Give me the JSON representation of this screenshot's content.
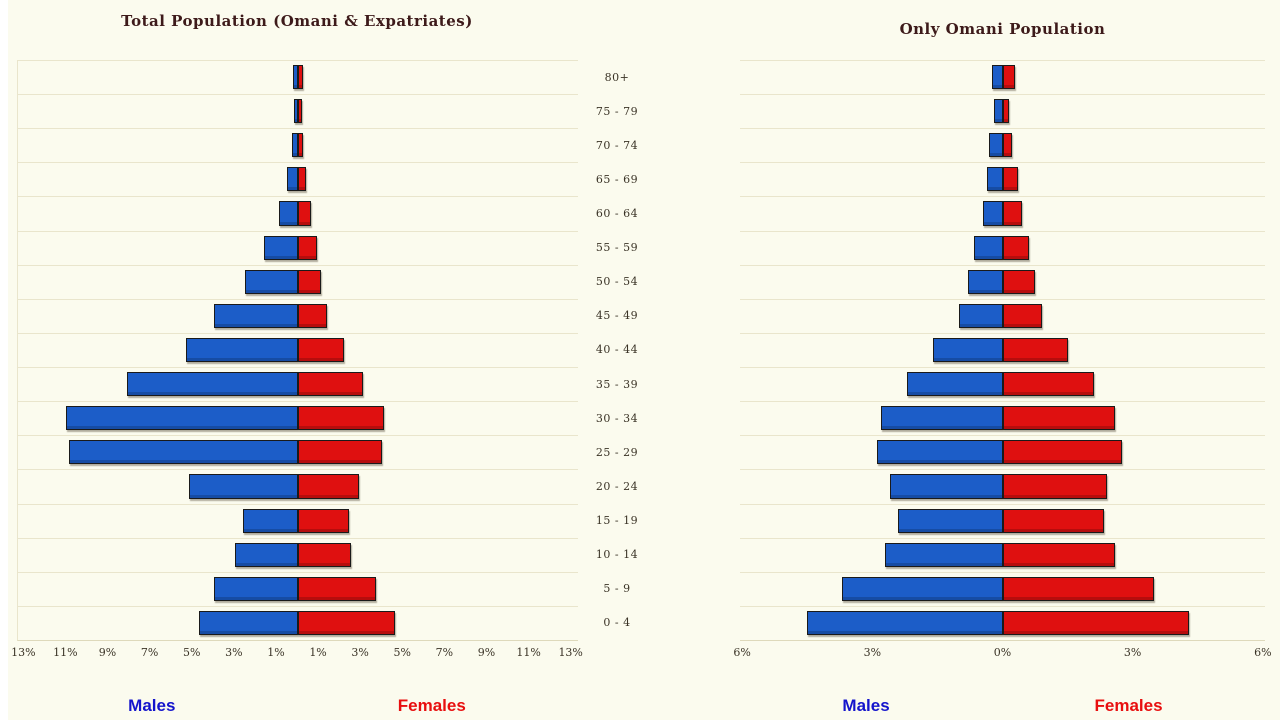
{
  "page": {
    "background_color": "#fbfbee",
    "gridline_color": "#e9e5cc"
  },
  "age_axis": {
    "groups": [
      "80+",
      "75 - 79",
      "70 - 74",
      "65 - 69",
      "60 - 64",
      "55 - 59",
      "50 - 54",
      "45 - 49",
      "40 - 44",
      "35 - 39",
      "30 - 34",
      "25 - 29",
      "20 - 24",
      "15 - 19",
      "10 - 14",
      "5 - 9",
      "0 - 4"
    ]
  },
  "chart_data": [
    {
      "type": "bar",
      "subtype": "population-pyramid",
      "title": "Total Population (Omani & Expatriates)",
      "categories": [
        "80+",
        "75 - 79",
        "70 - 74",
        "65 - 69",
        "60 - 64",
        "55 - 59",
        "50 - 54",
        "45 - 49",
        "40 - 44",
        "35 - 39",
        "30 - 34",
        "25 - 29",
        "20 - 24",
        "15 - 19",
        "10 - 14",
        "5 - 9",
        "0 - 4"
      ],
      "series": [
        {
          "name": "Males",
          "side": "left",
          "color": "#1c5dc8",
          "values": [
            0.25,
            0.2,
            0.3,
            0.5,
            0.9,
            1.6,
            2.5,
            4.0,
            5.3,
            8.1,
            11.0,
            10.9,
            5.2,
            2.6,
            3.0,
            4.0,
            4.7
          ]
        },
        {
          "name": "Females",
          "side": "right",
          "color": "#df1010",
          "values": [
            0.25,
            0.2,
            0.25,
            0.4,
            0.6,
            0.9,
            1.1,
            1.4,
            2.2,
            3.1,
            4.1,
            4.0,
            2.9,
            2.4,
            2.5,
            3.7,
            4.6
          ]
        }
      ],
      "unit": "%",
      "xlim": [
        -13.3,
        13.3
      ],
      "grid": true,
      "legend_position": "bottom",
      "legend": {
        "males": "Males",
        "females": "Females"
      },
      "xticks": [
        {
          "value": -13,
          "label": "13%"
        },
        {
          "value": -11,
          "label": "11%"
        },
        {
          "value": -9,
          "label": "9%"
        },
        {
          "value": -7,
          "label": "7%"
        },
        {
          "value": -5,
          "label": "5%"
        },
        {
          "value": -3,
          "label": "3%"
        },
        {
          "value": -1,
          "label": "1%"
        },
        {
          "value": 1,
          "label": "1%"
        },
        {
          "value": 3,
          "label": "3%"
        },
        {
          "value": 5,
          "label": "5%"
        },
        {
          "value": 7,
          "label": "7%"
        },
        {
          "value": 9,
          "label": "9%"
        },
        {
          "value": 11,
          "label": "11%"
        },
        {
          "value": 13,
          "label": "13%"
        }
      ]
    },
    {
      "type": "bar",
      "subtype": "population-pyramid",
      "title": "Only Omani Population",
      "categories": [
        "80+",
        "75 - 79",
        "70 - 74",
        "65 - 69",
        "60 - 64",
        "55 - 59",
        "50 - 54",
        "45 - 49",
        "40 - 44",
        "35 - 39",
        "30 - 34",
        "25 - 29",
        "20 - 24",
        "15 - 19",
        "10 - 14",
        "5 - 9",
        "0 - 4"
      ],
      "series": [
        {
          "name": "Males",
          "side": "left",
          "color": "#1c5dc8",
          "values": [
            0.25,
            0.2,
            0.3,
            0.35,
            0.45,
            0.65,
            0.8,
            1.0,
            1.6,
            2.2,
            2.8,
            2.9,
            2.6,
            2.4,
            2.7,
            3.7,
            4.5
          ]
        },
        {
          "name": "Females",
          "side": "right",
          "color": "#df1010",
          "values": [
            0.28,
            0.16,
            0.23,
            0.35,
            0.45,
            0.6,
            0.75,
            0.9,
            1.5,
            2.1,
            2.6,
            2.75,
            2.4,
            2.35,
            2.6,
            3.5,
            4.3
          ]
        }
      ],
      "unit": "%",
      "xlim": [
        -6.05,
        6.05
      ],
      "grid": true,
      "legend_position": "bottom",
      "legend": {
        "males": "Males",
        "females": "Females"
      },
      "xticks": [
        {
          "value": -6,
          "label": "6%"
        },
        {
          "value": -3,
          "label": "3%"
        },
        {
          "value": 0,
          "label": "0%"
        },
        {
          "value": 3,
          "label": "3%"
        },
        {
          "value": 6,
          "label": "6%"
        }
      ]
    }
  ]
}
